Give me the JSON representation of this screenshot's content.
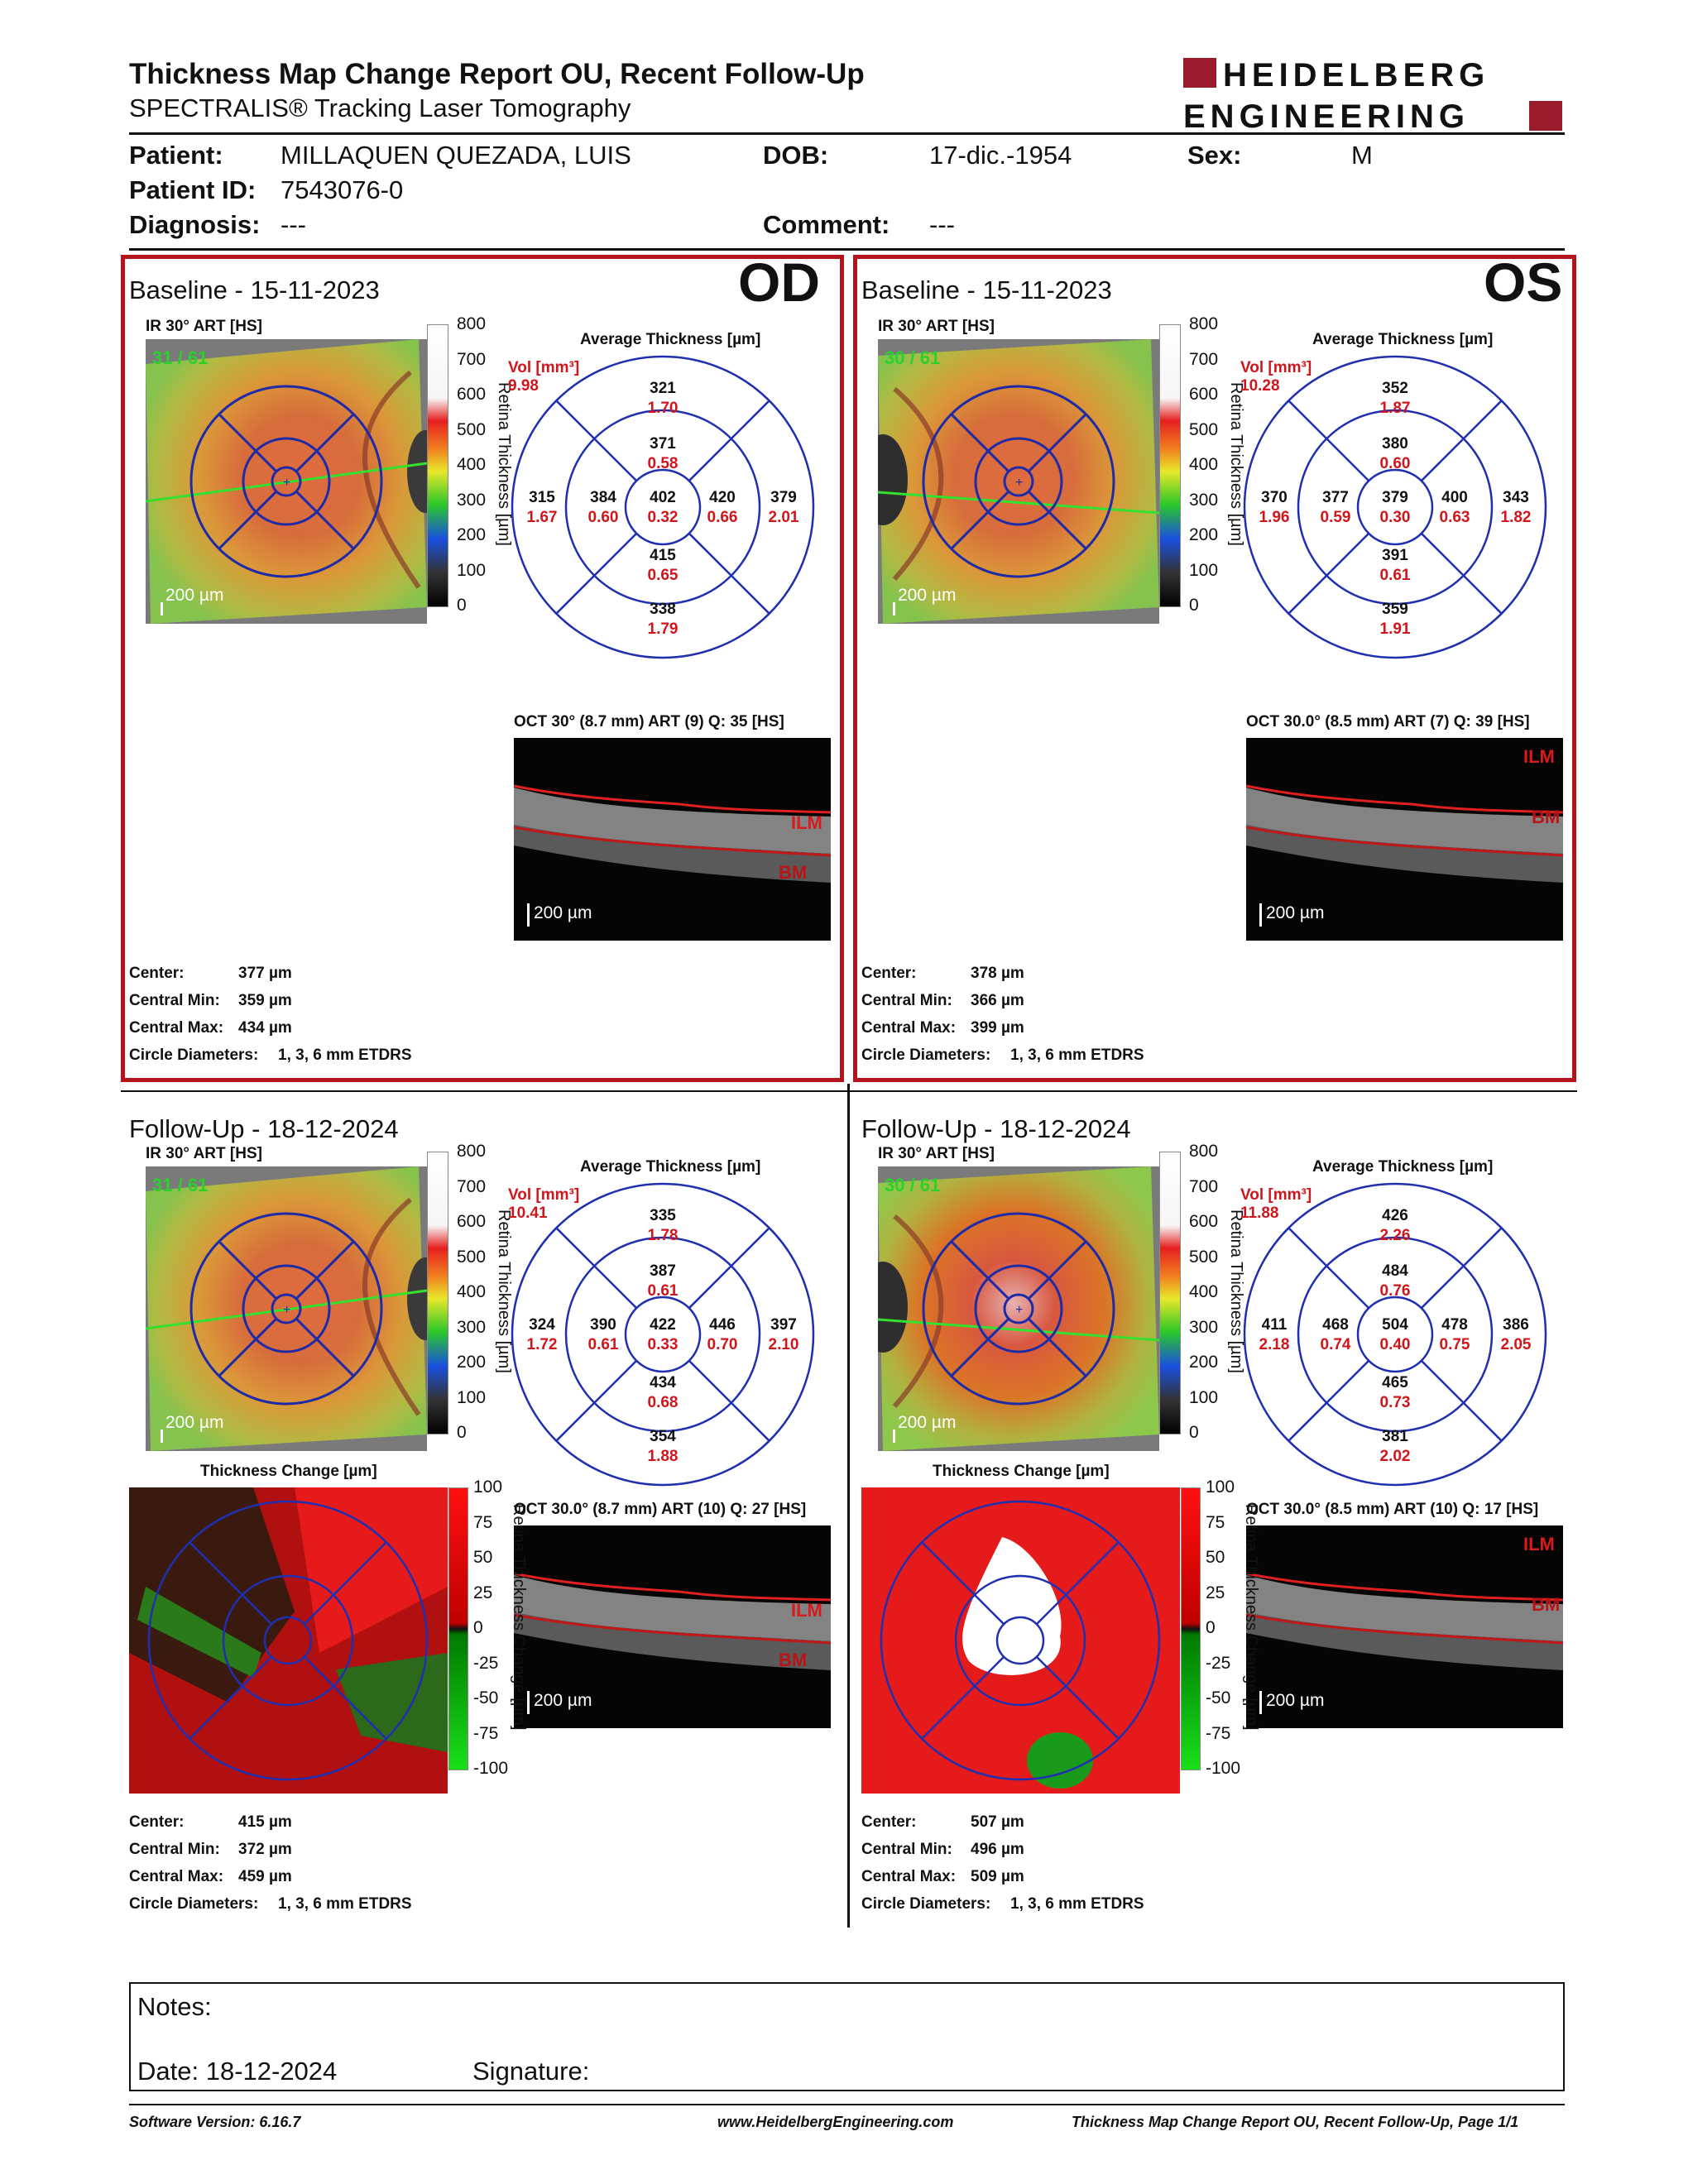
{
  "header": {
    "title": "Thickness Map Change Report OU, Recent Follow-Up",
    "subtitle": "SPECTRALIS® Tracking Laser Tomography",
    "logo_line1": "HEIDELBERG",
    "logo_line2": "ENGINEERING",
    "logo_color": "#9b1c2c"
  },
  "patient": {
    "patient_label": "Patient:",
    "patient_value": "MILLAQUEN QUEZADA, LUIS",
    "dob_label": "DOB:",
    "dob_value": "17-dic.-1954",
    "sex_label": "Sex:",
    "sex_value": "M",
    "id_label": "Patient ID:",
    "id_value": "7543076-0",
    "diagnosis_label": "Diagnosis:",
    "diagnosis_value": "---",
    "comment_label": "Comment:",
    "comment_value": "---"
  },
  "panels": {
    "od_baseline": {
      "heading": "Baseline - 15-11-2023",
      "eye": "OD",
      "ir_label": "IR 30° ART [HS]",
      "art": "31 / 61",
      "scale": "200 µm",
      "avg_title": "Average Thickness [µm]",
      "vol_label": "Vol [mm³]",
      "vol_value": "9.98",
      "thk": {
        "c": "402",
        "ci": "0.32",
        "ni": "371",
        "nv": "0.58",
        "ii": "415",
        "iv": "0.65",
        "ti": "384",
        "tv": "0.60",
        "ri": "420",
        "rv": "0.66",
        "no": "321",
        "nov": "1.70",
        "io": "338",
        "iov": "1.79",
        "to": "315",
        "tov": "1.67",
        "ro": "379",
        "rov": "2.01"
      },
      "oct_label": "OCT 30° (8.7 mm) ART (9) Q: 35 [HS]",
      "center": "377 µm",
      "cmin": "359 µm",
      "cmax": "434 µm",
      "circ": "1, 3, 6 mm ETDRS"
    },
    "os_baseline": {
      "heading": "Baseline - 15-11-2023",
      "eye": "OS",
      "ir_label": "IR 30° ART [HS]",
      "art": "30 / 61",
      "scale": "200 µm",
      "avg_title": "Average Thickness [µm]",
      "vol_label": "Vol [mm³]",
      "vol_value": "10.28",
      "thk": {
        "c": "379",
        "ci": "0.30",
        "ni": "380",
        "nv": "0.60",
        "ii": "391",
        "iv": "0.61",
        "ti": "377",
        "tv": "0.59",
        "ri": "400",
        "rv": "0.63",
        "no": "352",
        "nov": "1.87",
        "io": "359",
        "iov": "1.91",
        "to": "370",
        "tov": "1.96",
        "ro": "343",
        "rov": "1.82"
      },
      "oct_label": "OCT 30.0° (8.5 mm) ART (7) Q: 39 [HS]",
      "center": "378 µm",
      "cmin": "366 µm",
      "cmax": "399 µm",
      "circ": "1, 3, 6 mm ETDRS"
    },
    "od_follow": {
      "heading": "Follow-Up - 18-12-2024",
      "ir_label": "IR 30° ART [HS]",
      "art": "31 / 61",
      "scale": "200 µm",
      "avg_title": "Average Thickness [µm]",
      "vol_label": "Vol [mm³]",
      "vol_value": "10.41",
      "thk": {
        "c": "422",
        "ci": "0.33",
        "ni": "387",
        "nv": "0.61",
        "ii": "434",
        "iv": "0.68",
        "ti": "390",
        "tv": "0.61",
        "ri": "446",
        "rv": "0.70",
        "no": "335",
        "nov": "1.78",
        "io": "354",
        "iov": "1.88",
        "to": "324",
        "tov": "1.72",
        "ro": "397",
        "rov": "2.10"
      },
      "change_title": "Thickness Change [µm]",
      "oct_label": "OCT 30.0° (8.7 mm) ART (10) Q: 27 [HS]",
      "center": "415 µm",
      "cmin": "372 µm",
      "cmax": "459 µm",
      "circ": "1, 3, 6 mm ETDRS"
    },
    "os_follow": {
      "heading": "Follow-Up - 18-12-2024",
      "ir_label": "IR 30° ART [HS]",
      "art": "30 / 61",
      "scale": "200 µm",
      "avg_title": "Average Thickness [µm]",
      "vol_label": "Vol [mm³]",
      "vol_value": "11.88",
      "thk": {
        "c": "504",
        "ci": "0.40",
        "ni": "484",
        "nv": "0.76",
        "ii": "465",
        "iv": "0.73",
        "ti": "468",
        "tv": "0.74",
        "ri": "478",
        "rv": "0.75",
        "no": "426",
        "nov": "2.26",
        "io": "381",
        "iov": "2.02",
        "to": "411",
        "tov": "2.18",
        "ro": "386",
        "rov": "2.05"
      },
      "change_title": "Thickness Change [µm]",
      "oct_label": "OCT 30.0° (8.5 mm) ART (10) Q: 17 [HS]",
      "center": "507 µm",
      "cmin": "496 µm",
      "cmax": "509 µm",
      "circ": "1, 3, 6 mm ETDRS"
    }
  },
  "labels": {
    "center": "Center:",
    "cmin": "Central Min:",
    "cmax": "Central Max:",
    "circ": "Circle Diameters:",
    "thickness_axis": "Retina Thickness [µm]",
    "change_axis": "Retina Thickness Change [µm]",
    "ilm": "ILM",
    "bm": "BM"
  },
  "scale_ticks": [
    "800",
    "700",
    "600",
    "500",
    "400",
    "300",
    "200",
    "100",
    "0"
  ],
  "change_ticks": [
    "100",
    "75",
    "50",
    "25",
    "0",
    "-25",
    "-50",
    "-75",
    "-100"
  ],
  "notes": {
    "notes_label": "Notes:",
    "date_label": "Date: 18-12-2024",
    "signature_label": "Signature:"
  },
  "footer": {
    "software": "Software Version: 6.16.7",
    "website": "www.HeidelbergEngineering.com",
    "page": "Thickness Map Change Report OU, Recent Follow-Up, Page 1/1"
  },
  "colors": {
    "accent_red": "#b5121b",
    "value_red": "#d0161c",
    "grid_blue": "#1f2fb0"
  }
}
